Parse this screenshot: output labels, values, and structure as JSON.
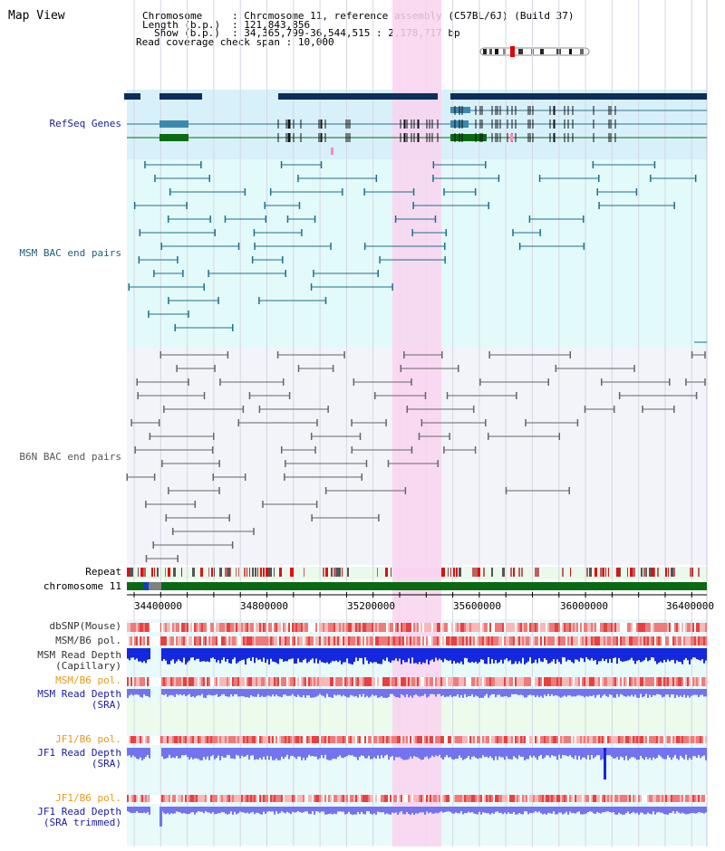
{
  "title": "Map View",
  "info": {
    "chromosome_label": "Chromosome",
    "chromosome_value": "Chromosome 11, reference assembly (C57BL/6J) (Build 37)",
    "length_label": "Length (b.p.)",
    "length_value": "121,843,856",
    "show_label": "Show (b.p.)",
    "show_value": "34,365,799-36,544,515 : 2,178,717 bp",
    "span_label": "Read coverage check span",
    "span_value": "10,000"
  },
  "tracks": {
    "refseq": "RefSeq Genes",
    "msm_bac": "MSM BAC end pairs",
    "b6n_bac": "B6N BAC end pairs",
    "repeat": "Repeat",
    "chromosome": "chromosome 11",
    "dbsnp": "dbSNP(Mouse)",
    "msm_b6_pol_1": "MSM/B6 pol.",
    "msm_depth_cap_1": "MSM Read Depth",
    "msm_depth_cap_2": "(Capillary)",
    "msm_b6_pol_2": "MSM/B6 pol.",
    "msm_depth_sra_1": "MSM Read Depth",
    "msm_depth_sra_2": "(SRA)",
    "jf1_b6_pol_1": "JF1/B6 pol.",
    "jf1_depth_sra_1": "JF1 Read Depth",
    "jf1_depth_sra_2": "(SRA)",
    "jf1_b6_pol_2": "JF1/B6 pol.",
    "jf1_depth_trim_1": "JF1 Read Depth",
    "jf1_depth_trim_2": "(SRA trimmed)"
  },
  "axis": {
    "ticks": [
      "34400000",
      "34800000",
      "35200000",
      "35600000",
      "36000000",
      "36400000"
    ]
  },
  "colors": {
    "highlight": "#f9d3ef",
    "refseq_bg": "#d8f0fa",
    "msm_bg": "#e3fafa",
    "b6n_bg": "#f3f3fa",
    "label_blue": "#1a1aa6",
    "label_teal": "#20607a",
    "label_orange": "#e89a1a",
    "gene_dark": "#0c2e5c",
    "gene_green": "#0a6a14",
    "msm_pair": "#1f6f8c",
    "b6n_pair": "#666666",
    "depth_blue": "#1428e0",
    "depth_light": "#7373f0"
  }
}
